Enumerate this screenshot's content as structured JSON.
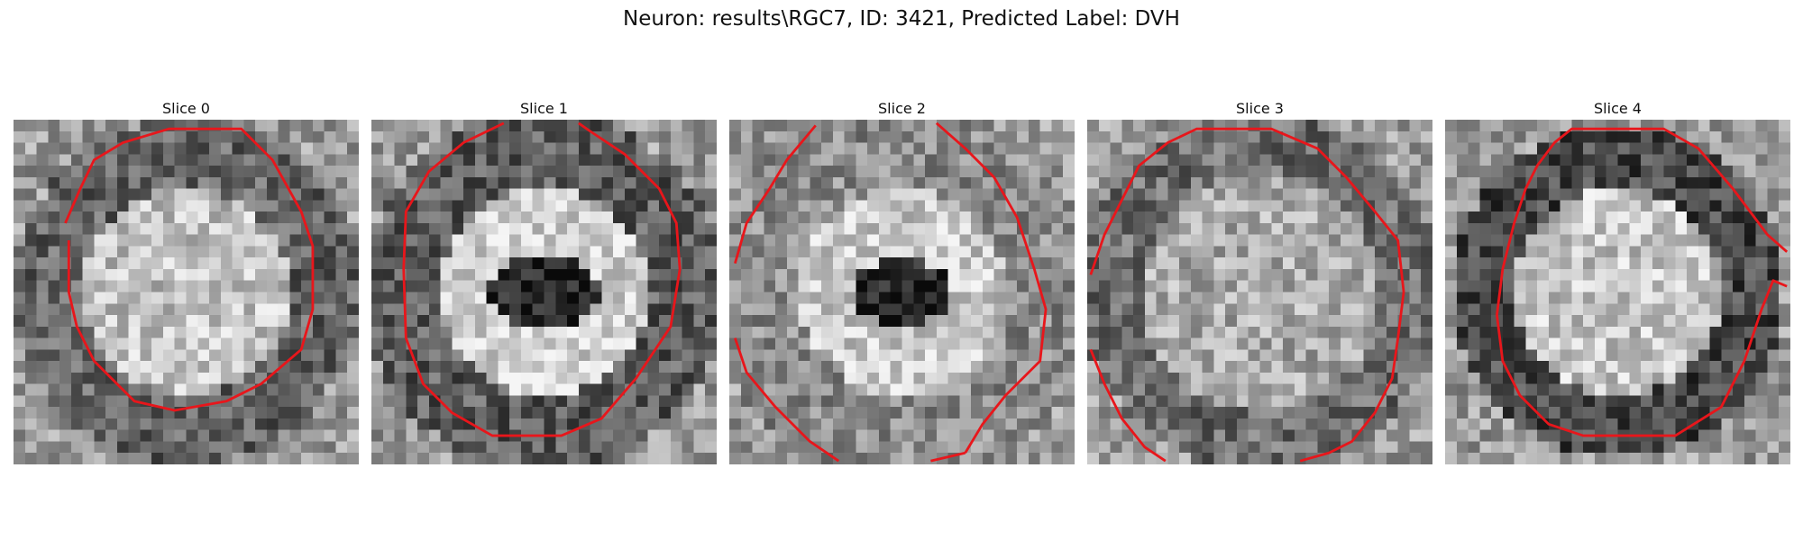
{
  "figure": {
    "title": "Neuron: results\\RGC7, ID: 3421, Predicted Label: DVH"
  },
  "colors": {
    "contour": "#e8161b",
    "background": "#ffffff"
  },
  "panels": [
    {
      "title": "Slice 0",
      "seed": 11,
      "center_value": 0.78,
      "center_radius": 0.3,
      "ring_value": 0.38,
      "ring_radius": 0.5,
      "hole_value": 0.0,
      "hole_radius": 0.0
    },
    {
      "title": "Slice 1",
      "seed": 23,
      "center_value": 0.1,
      "center_radius": 0.16,
      "ring_value": 0.86,
      "ring_radius": 0.3,
      "hole_value": 0.35,
      "hole_radius": 0.52
    },
    {
      "title": "Slice 2",
      "seed": 37,
      "center_value": 0.08,
      "center_radius": 0.15,
      "ring_value": 0.82,
      "ring_radius": 0.3,
      "hole_value": 0.55,
      "hole_radius": 0.56
    },
    {
      "title": "Slice 3",
      "seed": 41,
      "center_value": 0.68,
      "center_radius": 0.34,
      "ring_value": 0.42,
      "ring_radius": 0.52,
      "hole_value": 0.0,
      "hole_radius": 0.0
    },
    {
      "title": "Slice 4",
      "seed": 53,
      "center_value": 0.8,
      "center_radius": 0.3,
      "ring_value": 0.26,
      "ring_radius": 0.48,
      "hole_value": 0.0,
      "hole_radius": 0.0
    }
  ]
}
